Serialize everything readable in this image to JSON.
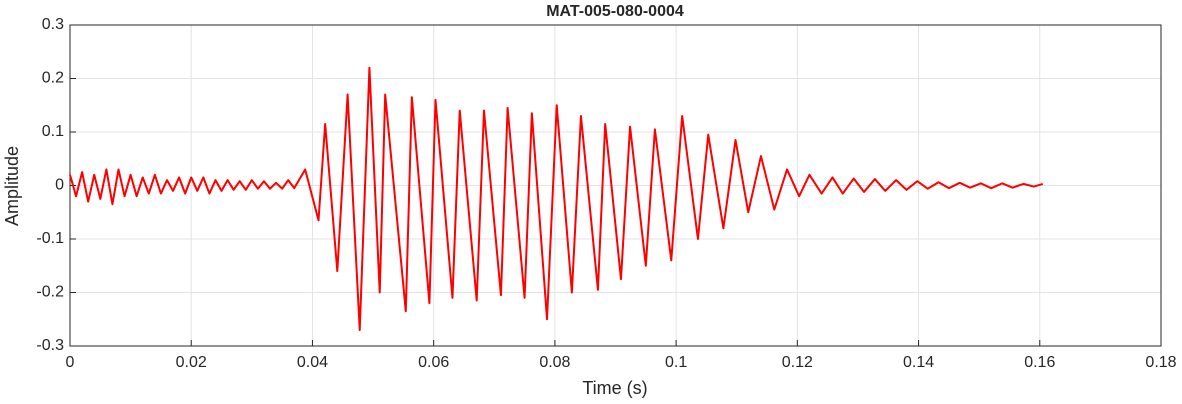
{
  "chart_data": {
    "type": "line",
    "title": "MAT-005-080-0004",
    "x_label": "Time (s)",
    "y_label": "Amplitude",
    "xlim": [
      0,
      0.18
    ],
    "xticks": [
      0,
      0.02,
      0.04,
      0.06,
      0.08,
      0.1,
      0.12,
      0.14,
      0.16,
      0.18
    ],
    "ylim": [
      -0.3,
      0.3
    ],
    "yticks": [
      -0.3,
      -0.2,
      -0.1,
      0,
      0.1,
      0.2,
      0.3
    ],
    "grid": true,
    "series": [
      {
        "color": "#ff0000",
        "x": [
          0,
          0.001,
          0.002,
          0.003,
          0.004,
          0.005,
          0.006,
          0.007,
          0.008,
          0.009,
          0.01,
          0.011,
          0.012,
          0.013,
          0.014,
          0.015,
          0.016,
          0.017,
          0.018,
          0.019,
          0.02,
          0.021,
          0.022,
          0.023,
          0.024,
          0.025,
          0.026,
          0.027,
          0.028,
          0.029,
          0.03,
          0.031,
          0.032,
          0.033,
          0.034,
          0.035,
          0.036,
          0.037,
          0.0388,
          0.041,
          0.0421,
          0.0441,
          0.0458,
          0.0478,
          0.0494,
          0.0511,
          0.052,
          0.0554,
          0.0564,
          0.0593,
          0.0603,
          0.0631,
          0.0643,
          0.0671,
          0.0683,
          0.0711,
          0.0722,
          0.075,
          0.0762,
          0.0787,
          0.0803,
          0.0828,
          0.0843,
          0.0871,
          0.0883,
          0.0909,
          0.0924,
          0.095,
          0.0965,
          0.0992,
          0.101,
          0.1036,
          0.1053,
          0.1078,
          0.1098,
          0.1119,
          0.114,
          0.1162,
          0.1183,
          0.1203,
          0.122,
          0.124,
          0.1258,
          0.1275,
          0.1293,
          0.131,
          0.1328,
          0.1345,
          0.1363,
          0.138,
          0.1398,
          0.1415,
          0.1433,
          0.145,
          0.1468,
          0.1485,
          0.1503,
          0.152,
          0.1538,
          0.1555,
          0.1573,
          0.159,
          0.1605
        ],
        "values": [
          0.02,
          -0.02,
          0.025,
          -0.03,
          0.02,
          -0.025,
          0.03,
          -0.035,
          0.03,
          -0.02,
          0.02,
          -0.02,
          0.015,
          -0.015,
          0.02,
          -0.015,
          0.01,
          -0.01,
          0.015,
          -0.015,
          0.015,
          -0.01,
          0.015,
          -0.015,
          0.01,
          -0.01,
          0.01,
          -0.008,
          0.008,
          -0.008,
          0.01,
          -0.006,
          0.008,
          -0.006,
          0.005,
          -0.006,
          0.01,
          -0.005,
          0.03,
          -0.065,
          0.115,
          -0.16,
          0.17,
          -0.27,
          0.22,
          -0.2,
          0.17,
          -0.235,
          0.165,
          -0.22,
          0.16,
          -0.21,
          0.14,
          -0.215,
          0.14,
          -0.205,
          0.145,
          -0.21,
          0.135,
          -0.25,
          0.15,
          -0.2,
          0.13,
          -0.195,
          0.115,
          -0.175,
          0.11,
          -0.15,
          0.105,
          -0.14,
          0.13,
          -0.1,
          0.095,
          -0.08,
          0.085,
          -0.05,
          0.055,
          -0.045,
          0.03,
          -0.02,
          0.02,
          -0.015,
          0.015,
          -0.015,
          0.013,
          -0.012,
          0.012,
          -0.01,
          0.01,
          -0.008,
          0.008,
          -0.006,
          0.006,
          -0.005,
          0.005,
          -0.004,
          0.004,
          -0.005,
          0.004,
          -0.004,
          0.003,
          -0.002,
          0.003
        ]
      }
    ]
  }
}
